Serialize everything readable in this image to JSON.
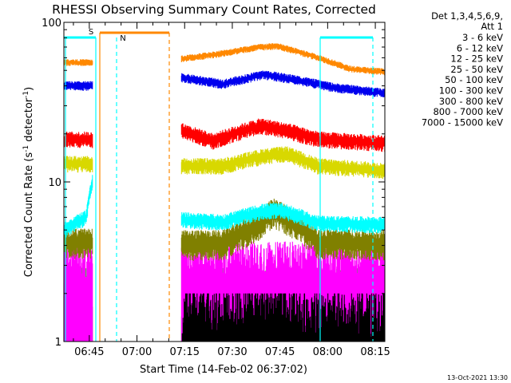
{
  "chart_data": {
    "type": "line",
    "title": "RHESSI Observing Summary Count Rates, Corrected",
    "xlabel": "Start Time (14-Feb-02 06:37:02)",
    "ylabel_parts": [
      "Corrected Count Rate (s",
      "-1",
      " detector",
      "-1",
      ")"
    ],
    "yscale": "log",
    "ylim": [
      1,
      100
    ],
    "ytick_labels": [
      {
        "value": 1,
        "label": "1"
      },
      {
        "value": 10,
        "label": "10"
      },
      {
        "value": 100,
        "label": "100"
      }
    ],
    "xlim_minutes": [
      0,
      101
    ],
    "xtick_labels": [
      {
        "t": 8,
        "label": "06:45"
      },
      {
        "t": 23,
        "label": "07:00"
      },
      {
        "t": 38,
        "label": "07:15"
      },
      {
        "t": 53,
        "label": "07:30"
      },
      {
        "t": 68,
        "label": "07:45"
      },
      {
        "t": 83,
        "label": "08:00"
      },
      {
        "t": 98,
        "label": "08:15"
      }
    ],
    "legend": {
      "placement": "right",
      "header_lines": [
        "Det 1,3,4,5,6,9,",
        "Att 1"
      ],
      "entries": [
        {
          "label": "3 - 6 keV",
          "color": "#000000"
        },
        {
          "label": "6 - 12 keV",
          "color": "#ff00ff"
        },
        {
          "label": "12 - 25 keV",
          "color": "#00ee00"
        },
        {
          "label": "25 - 50 keV",
          "color": "#00ffff"
        },
        {
          "label": "50 - 100 keV",
          "color": "#d8d800"
        },
        {
          "label": "100 - 300 keV",
          "color": "#ff0000"
        },
        {
          "label": "300 - 800 keV",
          "color": "#0000ee"
        },
        {
          "label": "800 - 7000 keV",
          "color": "#ff8800"
        },
        {
          "label": "7000 - 15000 keV",
          "color": "#808000"
        }
      ]
    },
    "segments_minutes": [
      [
        0,
        9
      ],
      [
        37,
        101
      ]
    ],
    "series": [
      {
        "name": "3 - 6 keV",
        "color": "#000000",
        "base": [
          [
            0,
            0
          ],
          [
            37,
            0
          ],
          [
            38,
            1.5
          ],
          [
            42,
            1.4
          ],
          [
            55,
            1.4
          ],
          [
            65,
            1.6
          ],
          [
            75,
            1.4
          ],
          [
            101,
            1.3
          ]
        ],
        "noise": 0.35,
        "clip": 2.0,
        "sparse": 0.35
      },
      {
        "name": "6 - 12 keV",
        "color": "#ff00ff",
        "base": [
          [
            0,
            3.0
          ],
          [
            9,
            3.0
          ],
          [
            37,
            3.0
          ],
          [
            101,
            3.0
          ]
        ],
        "noise": 0.55,
        "clip": 4.6,
        "sparse": 0
      },
      {
        "name": "12 - 25 keV",
        "color": "#00ee00",
        "base": [
          [
            0,
            1.7
          ],
          [
            9,
            1.7
          ],
          [
            37,
            1.8
          ],
          [
            101,
            1.7
          ]
        ],
        "noise": 0.55,
        "clip": 2.9,
        "sparse": 0
      },
      {
        "name": "25 - 50 keV",
        "color": "#00ffff",
        "base": [
          [
            0,
            5.0
          ],
          [
            7,
            6.0
          ],
          [
            9,
            10.0
          ],
          [
            37,
            5.8
          ],
          [
            50,
            5.6
          ],
          [
            62,
            6.5
          ],
          [
            68,
            6.7
          ],
          [
            80,
            5.5
          ],
          [
            101,
            5.4
          ]
        ],
        "noise": 0.12,
        "clip": 0,
        "sparse": 0
      },
      {
        "name": "50 - 100 keV",
        "color": "#d8d800",
        "base": [
          [
            0,
            13.0
          ],
          [
            9,
            13.0
          ],
          [
            37,
            12.6
          ],
          [
            50,
            12.6
          ],
          [
            63,
            14.5
          ],
          [
            70,
            15.0
          ],
          [
            80,
            12.6
          ],
          [
            101,
            11.8
          ]
        ],
        "noise": 0.12,
        "clip": 0,
        "sparse": 0
      },
      {
        "name": "100 - 300 keV",
        "color": "#ff0000",
        "base": [
          [
            0,
            18.5
          ],
          [
            9,
            18.5
          ],
          [
            37,
            21.0
          ],
          [
            47,
            18.0
          ],
          [
            55,
            20.5
          ],
          [
            62,
            22.5
          ],
          [
            70,
            21.0
          ],
          [
            80,
            18.5
          ],
          [
            101,
            17.5
          ]
        ],
        "noise": 0.12,
        "clip": 0,
        "sparse": 0
      },
      {
        "name": "300 - 800 keV",
        "color": "#0000ee",
        "base": [
          [
            0,
            40.0
          ],
          [
            9,
            40.0
          ],
          [
            37,
            45.0
          ],
          [
            50,
            41.0
          ],
          [
            63,
            47.0
          ],
          [
            72,
            44.0
          ],
          [
            85,
            39.0
          ],
          [
            101,
            36.0
          ]
        ],
        "noise": 0.07,
        "clip": 0,
        "sparse": 0
      },
      {
        "name": "800 - 7000 keV",
        "color": "#ff8800",
        "base": [
          [
            0,
            56.0
          ],
          [
            9,
            56.0
          ],
          [
            37,
            59.0
          ],
          [
            48,
            63.0
          ],
          [
            62,
            70.0
          ],
          [
            67,
            71.0
          ],
          [
            80,
            60.0
          ],
          [
            90,
            51.0
          ],
          [
            101,
            49.0
          ]
        ],
        "noise": 0.05,
        "clip": 0,
        "sparse": 0
      },
      {
        "name": "7000 - 15000 keV",
        "color": "#808000",
        "base": [
          [
            0,
            4.2
          ],
          [
            9,
            4.2
          ],
          [
            37,
            4.1
          ],
          [
            50,
            4.1
          ],
          [
            60,
            5.2
          ],
          [
            66,
            6.5
          ],
          [
            72,
            5.6
          ],
          [
            80,
            4.2
          ],
          [
            101,
            4.1
          ]
        ],
        "noise": 0.22,
        "clip": 0,
        "sparse": 0
      }
    ],
    "attenuator_markers": [
      {
        "label": "S",
        "t": 8.5,
        "color": "#ff8800"
      },
      {
        "label": "N",
        "t": 14.5,
        "color": "#00ffff"
      }
    ]
  },
  "footer": {
    "timestamp": "13-Oct-2021 13:30"
  }
}
